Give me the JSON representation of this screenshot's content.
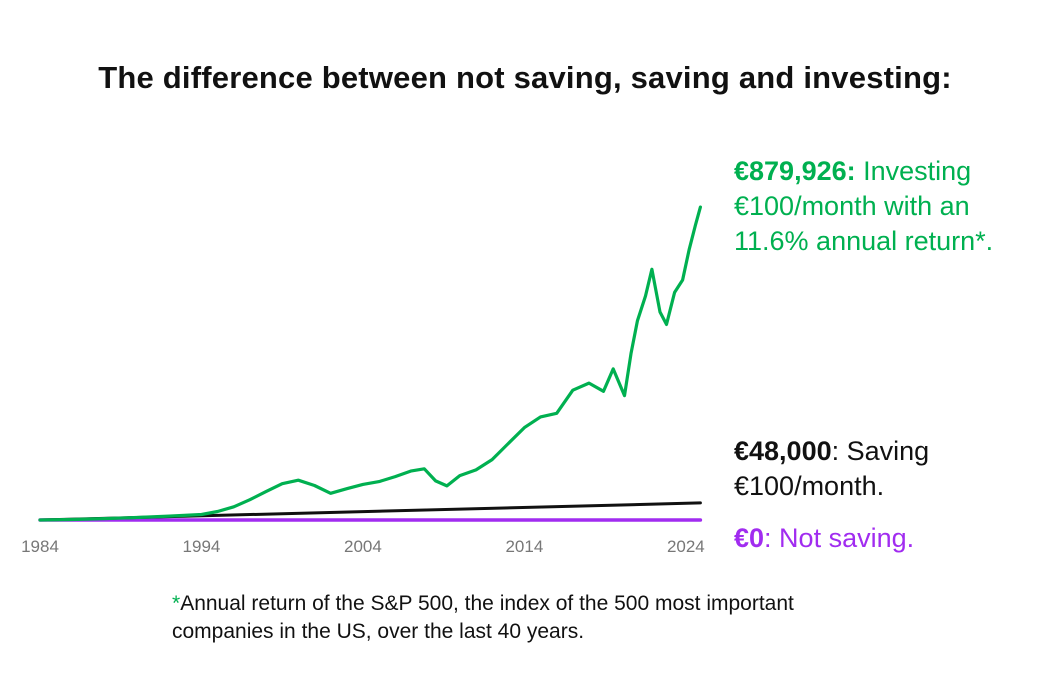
{
  "title": "The difference between not saving, saving and investing:",
  "colors": {
    "investing": "#00b050",
    "saving": "#111111",
    "not_saving": "#a12cf0",
    "tick": "#777777"
  },
  "annotations": {
    "investing": {
      "value": "€879,926:",
      "text": " Investing €100/month with an 11.6% annual return*."
    },
    "saving": {
      "value": "€48,000",
      "text": ": Saving €100/month."
    },
    "not_saving": {
      "value": "€0",
      "text": ": Not saving."
    }
  },
  "footnote": {
    "star": "*",
    "text": "Annual return of the S&P 500, the index of the 500 most important companies in the US, over the last 40 years."
  },
  "chart_data": {
    "type": "line",
    "title": "The difference between not saving, saving and investing:",
    "xlabel": "",
    "ylabel": "",
    "xlim": [
      1984,
      2025
    ],
    "ylim": [
      0,
      900000
    ],
    "x_ticks": [
      "1984",
      "1994",
      "2004",
      "2014",
      "2024"
    ],
    "grid": false,
    "legend": "none",
    "series": [
      {
        "key": "investing",
        "x": [
          1984,
          1986,
          1988,
          1990,
          1992,
          1994,
          1995,
          1996,
          1997,
          1998,
          1999,
          2000,
          2001,
          2002,
          2003,
          2004,
          2005,
          2006,
          2007,
          2007.8,
          2008.5,
          2009.2,
          2010,
          2011,
          2012,
          2013,
          2014,
          2015,
          2016,
          2017,
          2018,
          2018.9,
          2019.5,
          2020.2,
          2020.6,
          2021,
          2021.5,
          2021.9,
          2022.4,
          2022.8,
          2023.3,
          2023.8,
          2024.2,
          2024.6,
          2024.9
        ],
        "y": [
          0,
          1500,
          4000,
          7000,
          11000,
          15500,
          24000,
          37000,
          57000,
          80000,
          102000,
          112000,
          97000,
          75000,
          88000,
          100000,
          108000,
          122000,
          138000,
          144000,
          110000,
          96000,
          125000,
          141000,
          170000,
          215000,
          260000,
          290000,
          300000,
          365000,
          385000,
          362000,
          425000,
          350000,
          468000,
          560000,
          630000,
          705000,
          585000,
          550000,
          640000,
          675000,
          760000,
          830000,
          880000
        ]
      },
      {
        "key": "saving",
        "x": [
          1984,
          2024.9
        ],
        "y": [
          0,
          48000
        ]
      },
      {
        "key": "not_saving",
        "x": [
          1984,
          2024.9
        ],
        "y": [
          0,
          0
        ]
      }
    ]
  }
}
